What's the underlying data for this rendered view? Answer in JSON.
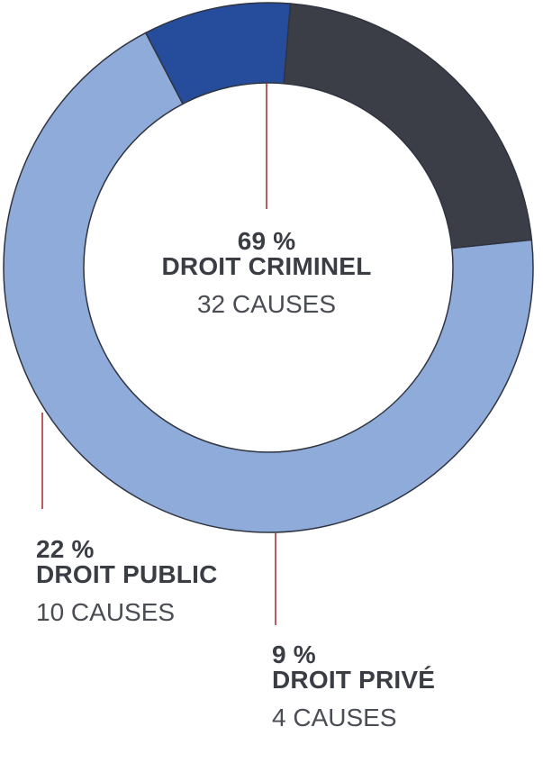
{
  "chart_data": {
    "type": "pie",
    "categories": [
      "DROIT CRIMINEL",
      "DROIT PRIVÉ",
      "DROIT PUBLIC"
    ],
    "values": [
      69,
      9,
      22
    ],
    "percent_labels": [
      "69 %",
      "9 %",
      "22 %"
    ],
    "counts": [
      "32 CAUSES",
      "4 CAUSES",
      "10 CAUSES"
    ],
    "colors": [
      "#8fabd9",
      "#264d9b",
      "#3b3e46"
    ],
    "leader_color": "#a83239",
    "outline_color": "#2f3440"
  }
}
